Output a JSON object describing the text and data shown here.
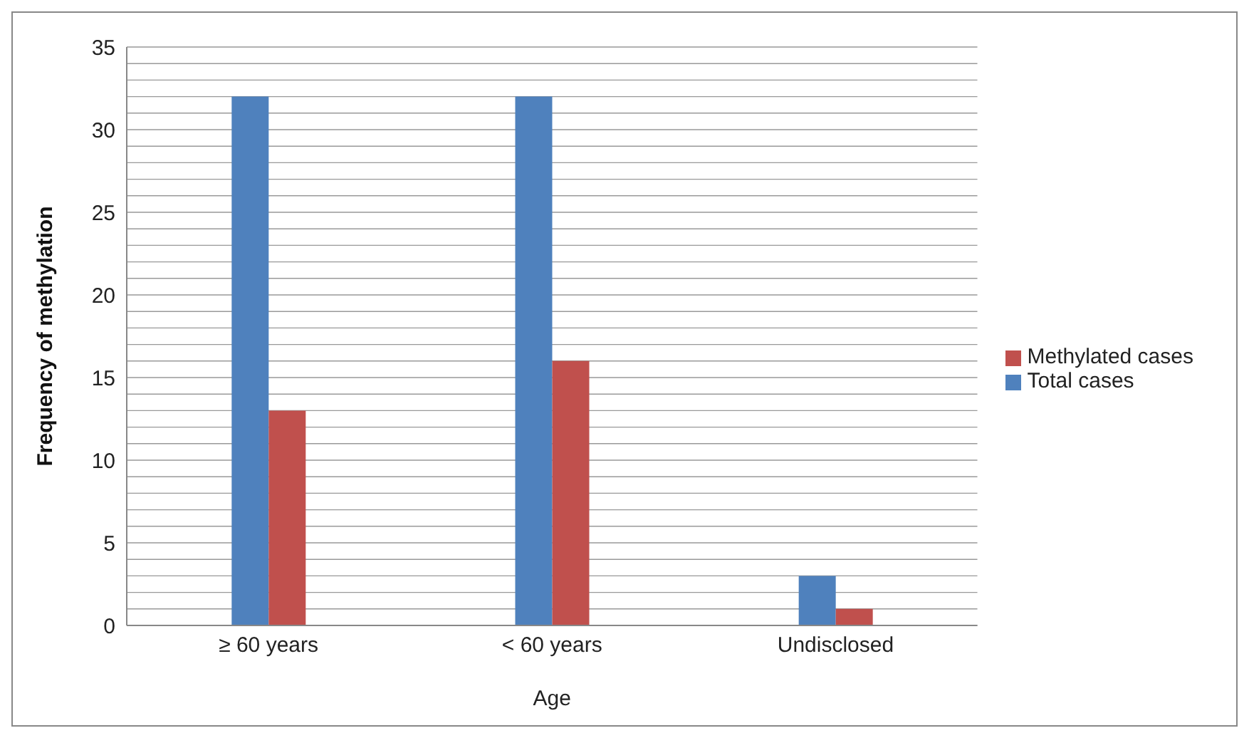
{
  "chart_data": {
    "type": "bar",
    "xlabel": "Age",
    "ylabel": "Frequency of methylation",
    "categories": [
      "≥ 60 years",
      "< 60 years",
      "Undisclosed"
    ],
    "series": [
      {
        "name": "Total cases",
        "color": "#4f81bd",
        "values": [
          32,
          32,
          3
        ]
      },
      {
        "name": "Methylated cases",
        "color": "#c0504d",
        "values": [
          13,
          16,
          1
        ]
      }
    ],
    "ylim": [
      0,
      35
    ],
    "yticks": [
      0,
      {
        "value": 1,
        "label": null
      },
      {
        "value": 2,
        "label": null
      },
      {
        "value": 3,
        "label": null
      },
      {
        "value": 4,
        "label": null
      },
      5,
      {
        "value": 6,
        "label": null
      },
      {
        "value": 7,
        "label": null
      },
      {
        "value": 8,
        "label": null
      },
      {
        "value": 9,
        "label": null
      },
      10,
      {
        "value": 11,
        "label": null
      },
      {
        "value": 12,
        "label": null
      },
      {
        "value": 13,
        "label": null
      },
      {
        "value": 14,
        "label": null
      },
      15,
      {
        "value": 16,
        "label": null
      },
      {
        "value": 17,
        "label": null
      },
      {
        "value": 18,
        "label": null
      },
      {
        "value": 19,
        "label": null
      },
      20,
      {
        "value": 21,
        "label": null
      },
      {
        "value": 22,
        "label": null
      },
      {
        "value": 23,
        "label": null
      },
      {
        "value": 24,
        "label": null
      },
      25,
      {
        "value": 26,
        "label": null
      },
      {
        "value": 27,
        "label": null
      },
      {
        "value": 28,
        "label": null
      },
      {
        "value": 29,
        "label": null
      },
      30,
      {
        "value": 31,
        "label": null
      },
      {
        "value": 32,
        "label": null
      },
      {
        "value": 33,
        "label": null
      },
      {
        "value": 34,
        "label": null
      },
      35
    ],
    "grid": "y",
    "legend": "right"
  }
}
